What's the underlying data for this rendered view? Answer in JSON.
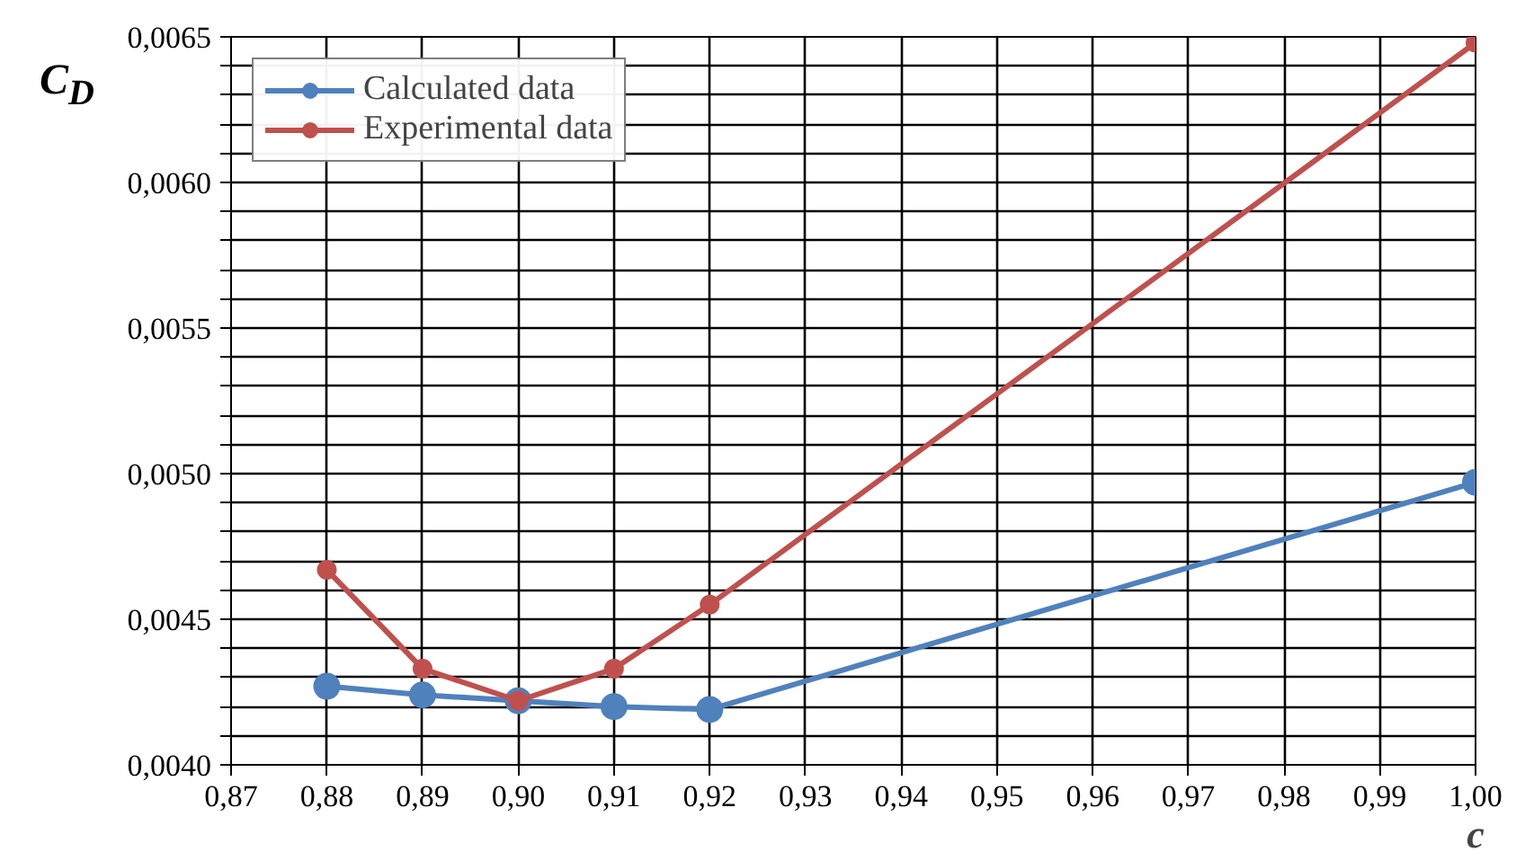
{
  "chart_data": {
    "type": "line",
    "xlabel": "c",
    "ylabel": "C$_{D}$",
    "x": [
      0.88,
      0.89,
      0.9,
      0.91,
      0.92,
      1.0
    ],
    "series": [
      {
        "name": "Calculated data",
        "color": "#4f81bd",
        "values": [
          0.00427,
          0.00424,
          0.00422,
          0.0042,
          0.00419,
          0.00497
        ]
      },
      {
        "name": "Experimental data",
        "color": "#c0504d",
        "values": [
          0.00467,
          0.00433,
          0.00422,
          0.00433,
          0.00455,
          0.00648
        ]
      }
    ],
    "xlim": [
      0.87,
      1.0
    ],
    "xticks": [
      {
        "value": 0.87,
        "label": "0,87"
      },
      {
        "value": 0.88,
        "label": "0,88"
      },
      {
        "value": 0.89,
        "label": "0,89"
      },
      {
        "value": 0.9,
        "label": "0,90"
      },
      {
        "value": 0.91,
        "label": "0,91"
      },
      {
        "value": 0.92,
        "label": "0,92"
      },
      {
        "value": 0.93,
        "label": "0,93"
      },
      {
        "value": 0.94,
        "label": "0,94"
      },
      {
        "value": 0.95,
        "label": "0,95"
      },
      {
        "value": 0.96,
        "label": "0,96"
      },
      {
        "value": 0.97,
        "label": "0,97"
      },
      {
        "value": 0.98,
        "label": "0,98"
      },
      {
        "value": 0.99,
        "label": "0,99"
      },
      {
        "value": 1.0,
        "label": "1,00"
      }
    ],
    "ylim": [
      0.004,
      0.0065
    ],
    "yticks": [
      {
        "value": 0.004,
        "label": "0,0040"
      },
      {
        "value": 0.0041,
        "label": null
      },
      {
        "value": 0.0042,
        "label": null
      },
      {
        "value": 0.0043,
        "label": null
      },
      {
        "value": 0.0044,
        "label": null
      },
      {
        "value": 0.0045,
        "label": "0,0045"
      },
      {
        "value": 0.0046,
        "label": null
      },
      {
        "value": 0.0047,
        "label": null
      },
      {
        "value": 0.0048,
        "label": null
      },
      {
        "value": 0.0049,
        "label": null
      },
      {
        "value": 0.005,
        "label": "0,0050"
      },
      {
        "value": 0.0051,
        "label": null
      },
      {
        "value": 0.0052,
        "label": null
      },
      {
        "value": 0.0053,
        "label": null
      },
      {
        "value": 0.0054,
        "label": null
      },
      {
        "value": 0.0055,
        "label": "0,0055"
      },
      {
        "value": 0.0056,
        "label": null
      },
      {
        "value": 0.0057,
        "label": null
      },
      {
        "value": 0.0058,
        "label": null
      },
      {
        "value": 0.0059,
        "label": null
      },
      {
        "value": 0.006,
        "label": "0,0060"
      },
      {
        "value": 0.0061,
        "label": null
      },
      {
        "value": 0.0062,
        "label": null
      },
      {
        "value": 0.0063,
        "label": null
      },
      {
        "value": 0.0064,
        "label": null
      },
      {
        "value": 0.0065,
        "label": "0,0065"
      }
    ],
    "grid": true,
    "legend": "top left",
    "marker": "circle",
    "line_style": "solid"
  }
}
